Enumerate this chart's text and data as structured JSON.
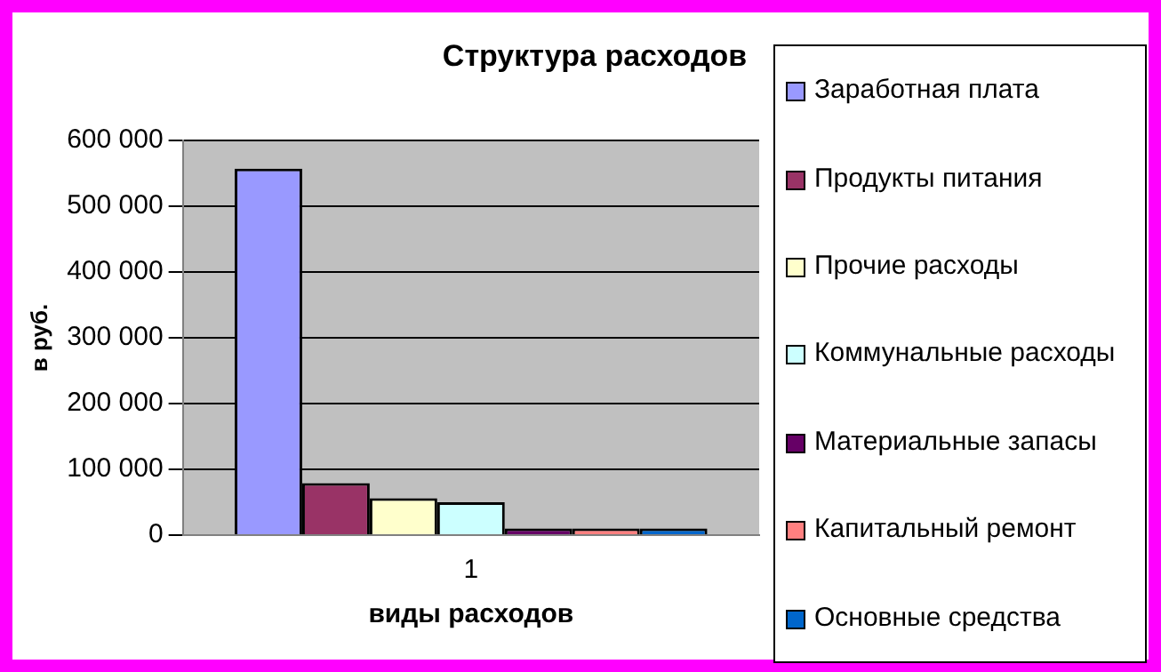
{
  "chart_data": {
    "type": "bar",
    "title": "Структура расходов",
    "xlabel": "виды расходов",
    "ylabel": "в руб.",
    "categories": [
      "1"
    ],
    "series": [
      {
        "name": "Заработная плата",
        "color": "#9999ff",
        "values": [
          557000
        ]
      },
      {
        "name": "Продукты питания",
        "color": "#993366",
        "values": [
          79000
        ]
      },
      {
        "name": "Прочие расходы",
        "color": "#ffffcc",
        "values": [
          56000
        ]
      },
      {
        "name": "Коммунальные расходы",
        "color": "#ccffff",
        "values": [
          50000
        ]
      },
      {
        "name": "Материальные запасы",
        "color": "#660066",
        "values": [
          10000
        ]
      },
      {
        "name": "Капитальный ремонт",
        "color": "#ff8080",
        "values": [
          10000
        ]
      },
      {
        "name": "Основные средства",
        "color": "#0066cc",
        "values": [
          10000
        ]
      }
    ],
    "ylim": [
      0,
      600000
    ],
    "yticks": [
      0,
      100000,
      200000,
      300000,
      400000,
      500000,
      600000
    ],
    "grid": "y",
    "legend": "right"
  }
}
